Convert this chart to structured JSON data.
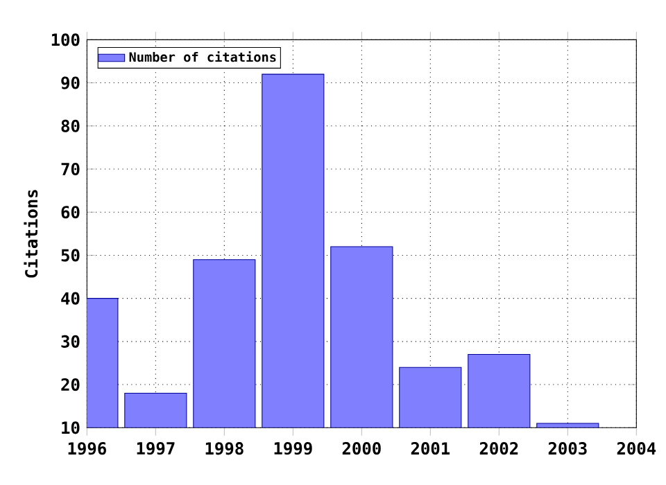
{
  "chart_data": {
    "type": "bar",
    "ylabel": "Citations",
    "x": [
      1996,
      1997,
      1998,
      1999,
      2000,
      2001,
      2002,
      2003
    ],
    "series": [
      {
        "name": "Number of citations",
        "color": "#8080ff",
        "values": [
          40,
          18,
          49,
          92,
          52,
          24,
          27,
          11
        ]
      }
    ],
    "xlim": [
      1996,
      2004
    ],
    "xticks": [
      1996,
      1997,
      1998,
      1999,
      2000,
      2001,
      2002,
      2003,
      2004
    ],
    "ylim": [
      10,
      100
    ],
    "yticks": [
      10,
      20,
      30,
      40,
      50,
      60,
      70,
      80,
      90,
      100
    ],
    "grid": true,
    "legend": "top left"
  }
}
